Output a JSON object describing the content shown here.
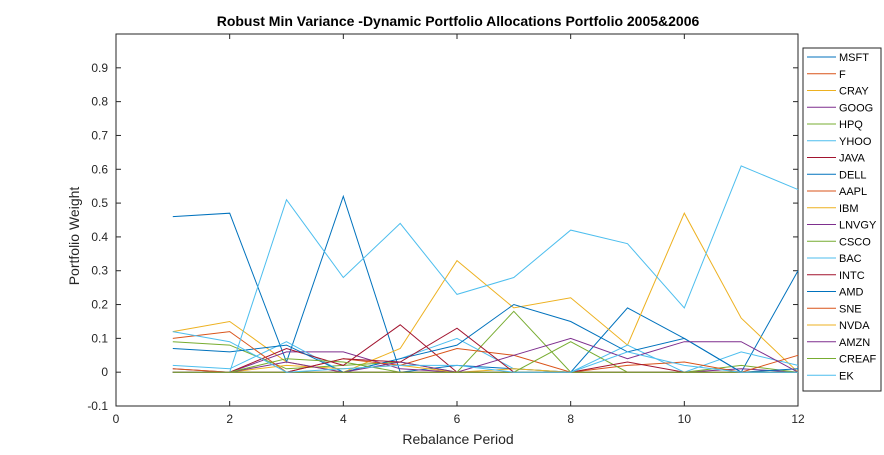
{
  "chart_data": {
    "type": "line",
    "title": "Robust Min Variance -Dynamic Portfolio Allocations Portfolio 2005&2006",
    "xlabel": "Rebalance Period",
    "ylabel": "Portfolio Weight",
    "xlim": [
      0,
      12
    ],
    "ylim": [
      -0.1,
      1.0
    ],
    "xticks": [
      "0",
      "2",
      "4",
      "6",
      "8",
      "10",
      "12"
    ],
    "yticks": [
      "-0.1",
      "0",
      "0.1",
      "0.2",
      "0.3",
      "0.4",
      "0.5",
      "0.6",
      "0.7",
      "0.8",
      "0.9"
    ],
    "grid": false,
    "legend_position": "right-outside",
    "x": [
      1,
      2,
      3,
      4,
      5,
      6,
      7,
      8,
      9,
      10,
      11,
      12
    ],
    "series": [
      {
        "name": "MSFT",
        "color": "#0072BD",
        "values": [
          0.46,
          0.47,
          0.03,
          0.52,
          0.0,
          0.02,
          0.01,
          0.0,
          0.19,
          0.1,
          0.0,
          0.3
        ]
      },
      {
        "name": "F",
        "color": "#D95319",
        "values": [
          0.0,
          0.0,
          0.0,
          0.0,
          0.0,
          0.0,
          0.0,
          0.0,
          0.0,
          0.0,
          0.0,
          0.0
        ]
      },
      {
        "name": "CRAY",
        "color": "#EDB120",
        "values": [
          0.12,
          0.15,
          0.03,
          0.0,
          0.07,
          0.33,
          0.19,
          0.22,
          0.08,
          0.47,
          0.16,
          0.0
        ]
      },
      {
        "name": "GOOG",
        "color": "#7E2F8E",
        "values": [
          0.01,
          0.0,
          0.06,
          0.06,
          0.01,
          0.0,
          0.0,
          0.0,
          0.0,
          0.0,
          0.01,
          0.0
        ]
      },
      {
        "name": "HPQ",
        "color": "#77AC30",
        "values": [
          0.09,
          0.08,
          0.01,
          0.02,
          0.03,
          0.0,
          0.18,
          0.0,
          0.0,
          0.0,
          0.02,
          0.0
        ]
      },
      {
        "name": "YHOO",
        "color": "#4DBEEE",
        "values": [
          0.02,
          0.01,
          0.09,
          0.0,
          0.04,
          0.1,
          0.01,
          0.0,
          0.08,
          0.0,
          0.06,
          0.02
        ]
      },
      {
        "name": "JAVA",
        "color": "#A2142F",
        "values": [
          0.0,
          0.0,
          0.07,
          0.02,
          0.14,
          0.0,
          0.0,
          0.0,
          0.0,
          0.0,
          0.0,
          0.0
        ]
      },
      {
        "name": "DELL",
        "color": "#0072BD",
        "values": [
          0.07,
          0.06,
          0.08,
          0.0,
          0.04,
          0.08,
          0.2,
          0.15,
          0.06,
          0.1,
          0.0,
          0.01
        ]
      },
      {
        "name": "AAPL",
        "color": "#D95319",
        "values": [
          0.1,
          0.12,
          0.0,
          0.04,
          0.02,
          0.07,
          0.05,
          0.0,
          0.02,
          0.03,
          0.0,
          0.05
        ]
      },
      {
        "name": "IBM",
        "color": "#EDB120",
        "values": [
          0.0,
          0.0,
          0.02,
          0.01,
          0.02,
          0.0,
          0.01,
          0.0,
          0.0,
          0.0,
          0.0,
          0.0
        ]
      },
      {
        "name": "LNVGY",
        "color": "#7E2F8E",
        "values": [
          0.0,
          0.0,
          0.03,
          0.0,
          0.03,
          0.0,
          0.05,
          0.1,
          0.04,
          0.09,
          0.09,
          0.0
        ]
      },
      {
        "name": "CSCO",
        "color": "#77AC30",
        "values": [
          0.0,
          0.0,
          0.04,
          0.03,
          0.0,
          0.0,
          0.0,
          0.09,
          0.0,
          0.0,
          0.0,
          0.0
        ]
      },
      {
        "name": "BAC",
        "color": "#4DBEEE",
        "values": [
          0.0,
          0.0,
          0.51,
          0.28,
          0.44,
          0.23,
          0.28,
          0.42,
          0.38,
          0.19,
          0.61,
          0.54
        ]
      },
      {
        "name": "INTC",
        "color": "#A2142F",
        "values": [
          0.0,
          0.0,
          0.0,
          0.04,
          0.03,
          0.13,
          0.0,
          0.0,
          0.03,
          0.0,
          0.0,
          0.0
        ]
      },
      {
        "name": "AMD",
        "color": "#0072BD",
        "values": [
          0.0,
          0.0,
          0.0,
          0.0,
          0.0,
          0.0,
          0.0,
          0.0,
          0.0,
          0.0,
          0.0,
          0.0
        ]
      },
      {
        "name": "SNE",
        "color": "#D95319",
        "values": [
          0.01,
          0.0,
          0.0,
          0.0,
          0.0,
          0.0,
          0.0,
          0.0,
          0.0,
          0.0,
          0.0,
          0.0
        ]
      },
      {
        "name": "NVDA",
        "color": "#EDB120",
        "values": [
          0.0,
          0.0,
          0.0,
          0.0,
          0.0,
          0.0,
          0.0,
          0.0,
          0.0,
          0.0,
          0.0,
          0.0
        ]
      },
      {
        "name": "AMZN",
        "color": "#7E2F8E",
        "values": [
          0.0,
          0.0,
          0.0,
          0.0,
          0.0,
          0.0,
          0.0,
          0.0,
          0.0,
          0.0,
          0.0,
          0.0
        ]
      },
      {
        "name": "CREAF",
        "color": "#77AC30",
        "values": [
          0.0,
          0.0,
          0.0,
          0.0,
          0.0,
          0.0,
          0.0,
          0.0,
          0.0,
          0.0,
          0.0,
          0.0
        ]
      },
      {
        "name": "EK",
        "color": "#4DBEEE",
        "values": [
          0.12,
          0.09,
          0.0,
          0.01,
          0.02,
          0.02,
          0.0,
          0.0,
          0.06,
          0.02,
          0.0,
          0.0
        ]
      }
    ]
  }
}
